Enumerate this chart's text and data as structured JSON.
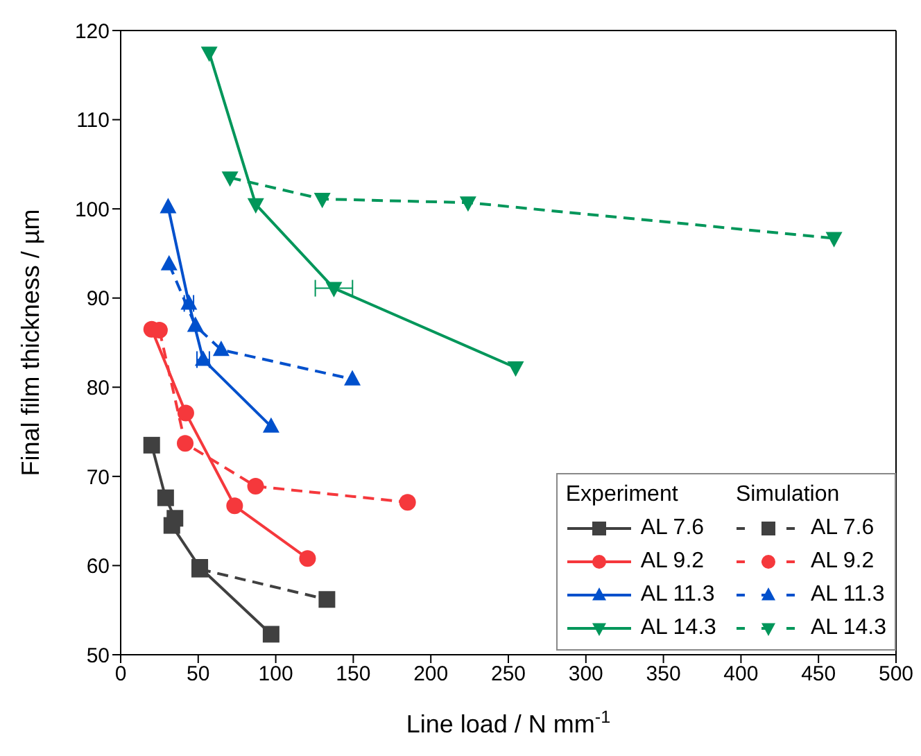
{
  "chart_data": {
    "type": "line",
    "xlabel": "Line load / N mm$^{-1}$",
    "ylabel": "Final film thickness / µm",
    "xlim": [
      0,
      500
    ],
    "xticks": [
      0,
      50,
      100,
      150,
      200,
      250,
      300,
      350,
      400,
      450,
      500
    ],
    "ylim": [
      50,
      120
    ],
    "yticks": [
      50,
      60,
      70,
      80,
      90,
      100,
      110,
      120
    ],
    "grid": false,
    "legend": "bottom right",
    "annotations": [
      "Experiment",
      "Simulation"
    ],
    "series": [
      {
        "name": "AL 7.6",
        "color": "#404040",
        "marker": "square",
        "line_style": "solid",
        "x": [
          20,
          29,
          35,
          33,
          51,
          97
        ],
        "values": [
          73.5,
          67.6,
          65.3,
          64.5,
          59.8,
          52.3
        ]
      },
      {
        "name": "AL 9.2",
        "color": "#f5383c",
        "marker": "circle",
        "line_style": "solid",
        "x": [
          20,
          42,
          73.5,
          120.5
        ],
        "values": [
          86.5,
          77.1,
          66.7,
          60.8
        ]
      },
      {
        "name": "AL 11.3",
        "color": "#0050cc",
        "marker": "triangle",
        "line_style": "solid",
        "x": [
          30.6,
          44,
          53.2,
          97
        ],
        "values": [
          100.2,
          89.4,
          83.1,
          75.6
        ],
        "xerrors": [
          null,
          3,
          4,
          null
        ]
      },
      {
        "name": "AL 14.3",
        "color": "#00965a",
        "marker": "triangle-down",
        "line_style": "solid",
        "x": [
          57.1,
          87.1,
          137.5,
          254.7
        ],
        "values": [
          117.5,
          100.5,
          91.1,
          82.2
        ],
        "xerrors": [
          null,
          null,
          12,
          null
        ]
      },
      {
        "name": "AL 7.6",
        "color": "#404040",
        "marker": "square",
        "line_style": "dashed",
        "x": [
          51,
          133
        ],
        "values": [
          59.6,
          56.2
        ]
      },
      {
        "name": "AL 9.2",
        "color": "#f5383c",
        "marker": "circle",
        "line_style": "dashed",
        "x": [
          25,
          41.6,
          87,
          185
        ],
        "values": [
          86.4,
          73.7,
          68.9,
          67.1
        ]
      },
      {
        "name": "AL 11.3",
        "color": "#0050cc",
        "marker": "triangle",
        "line_style": "dashed",
        "x": [
          31.2,
          48.2,
          64.8,
          149.4
        ],
        "values": [
          93.8,
          86.9,
          84.2,
          80.9
        ]
      },
      {
        "name": "AL 14.3",
        "color": "#00965a",
        "marker": "triangle-down",
        "line_style": "dashed",
        "x": [
          70.5,
          130,
          224,
          460
        ],
        "values": [
          103.5,
          101.1,
          100.7,
          96.7
        ]
      }
    ]
  }
}
